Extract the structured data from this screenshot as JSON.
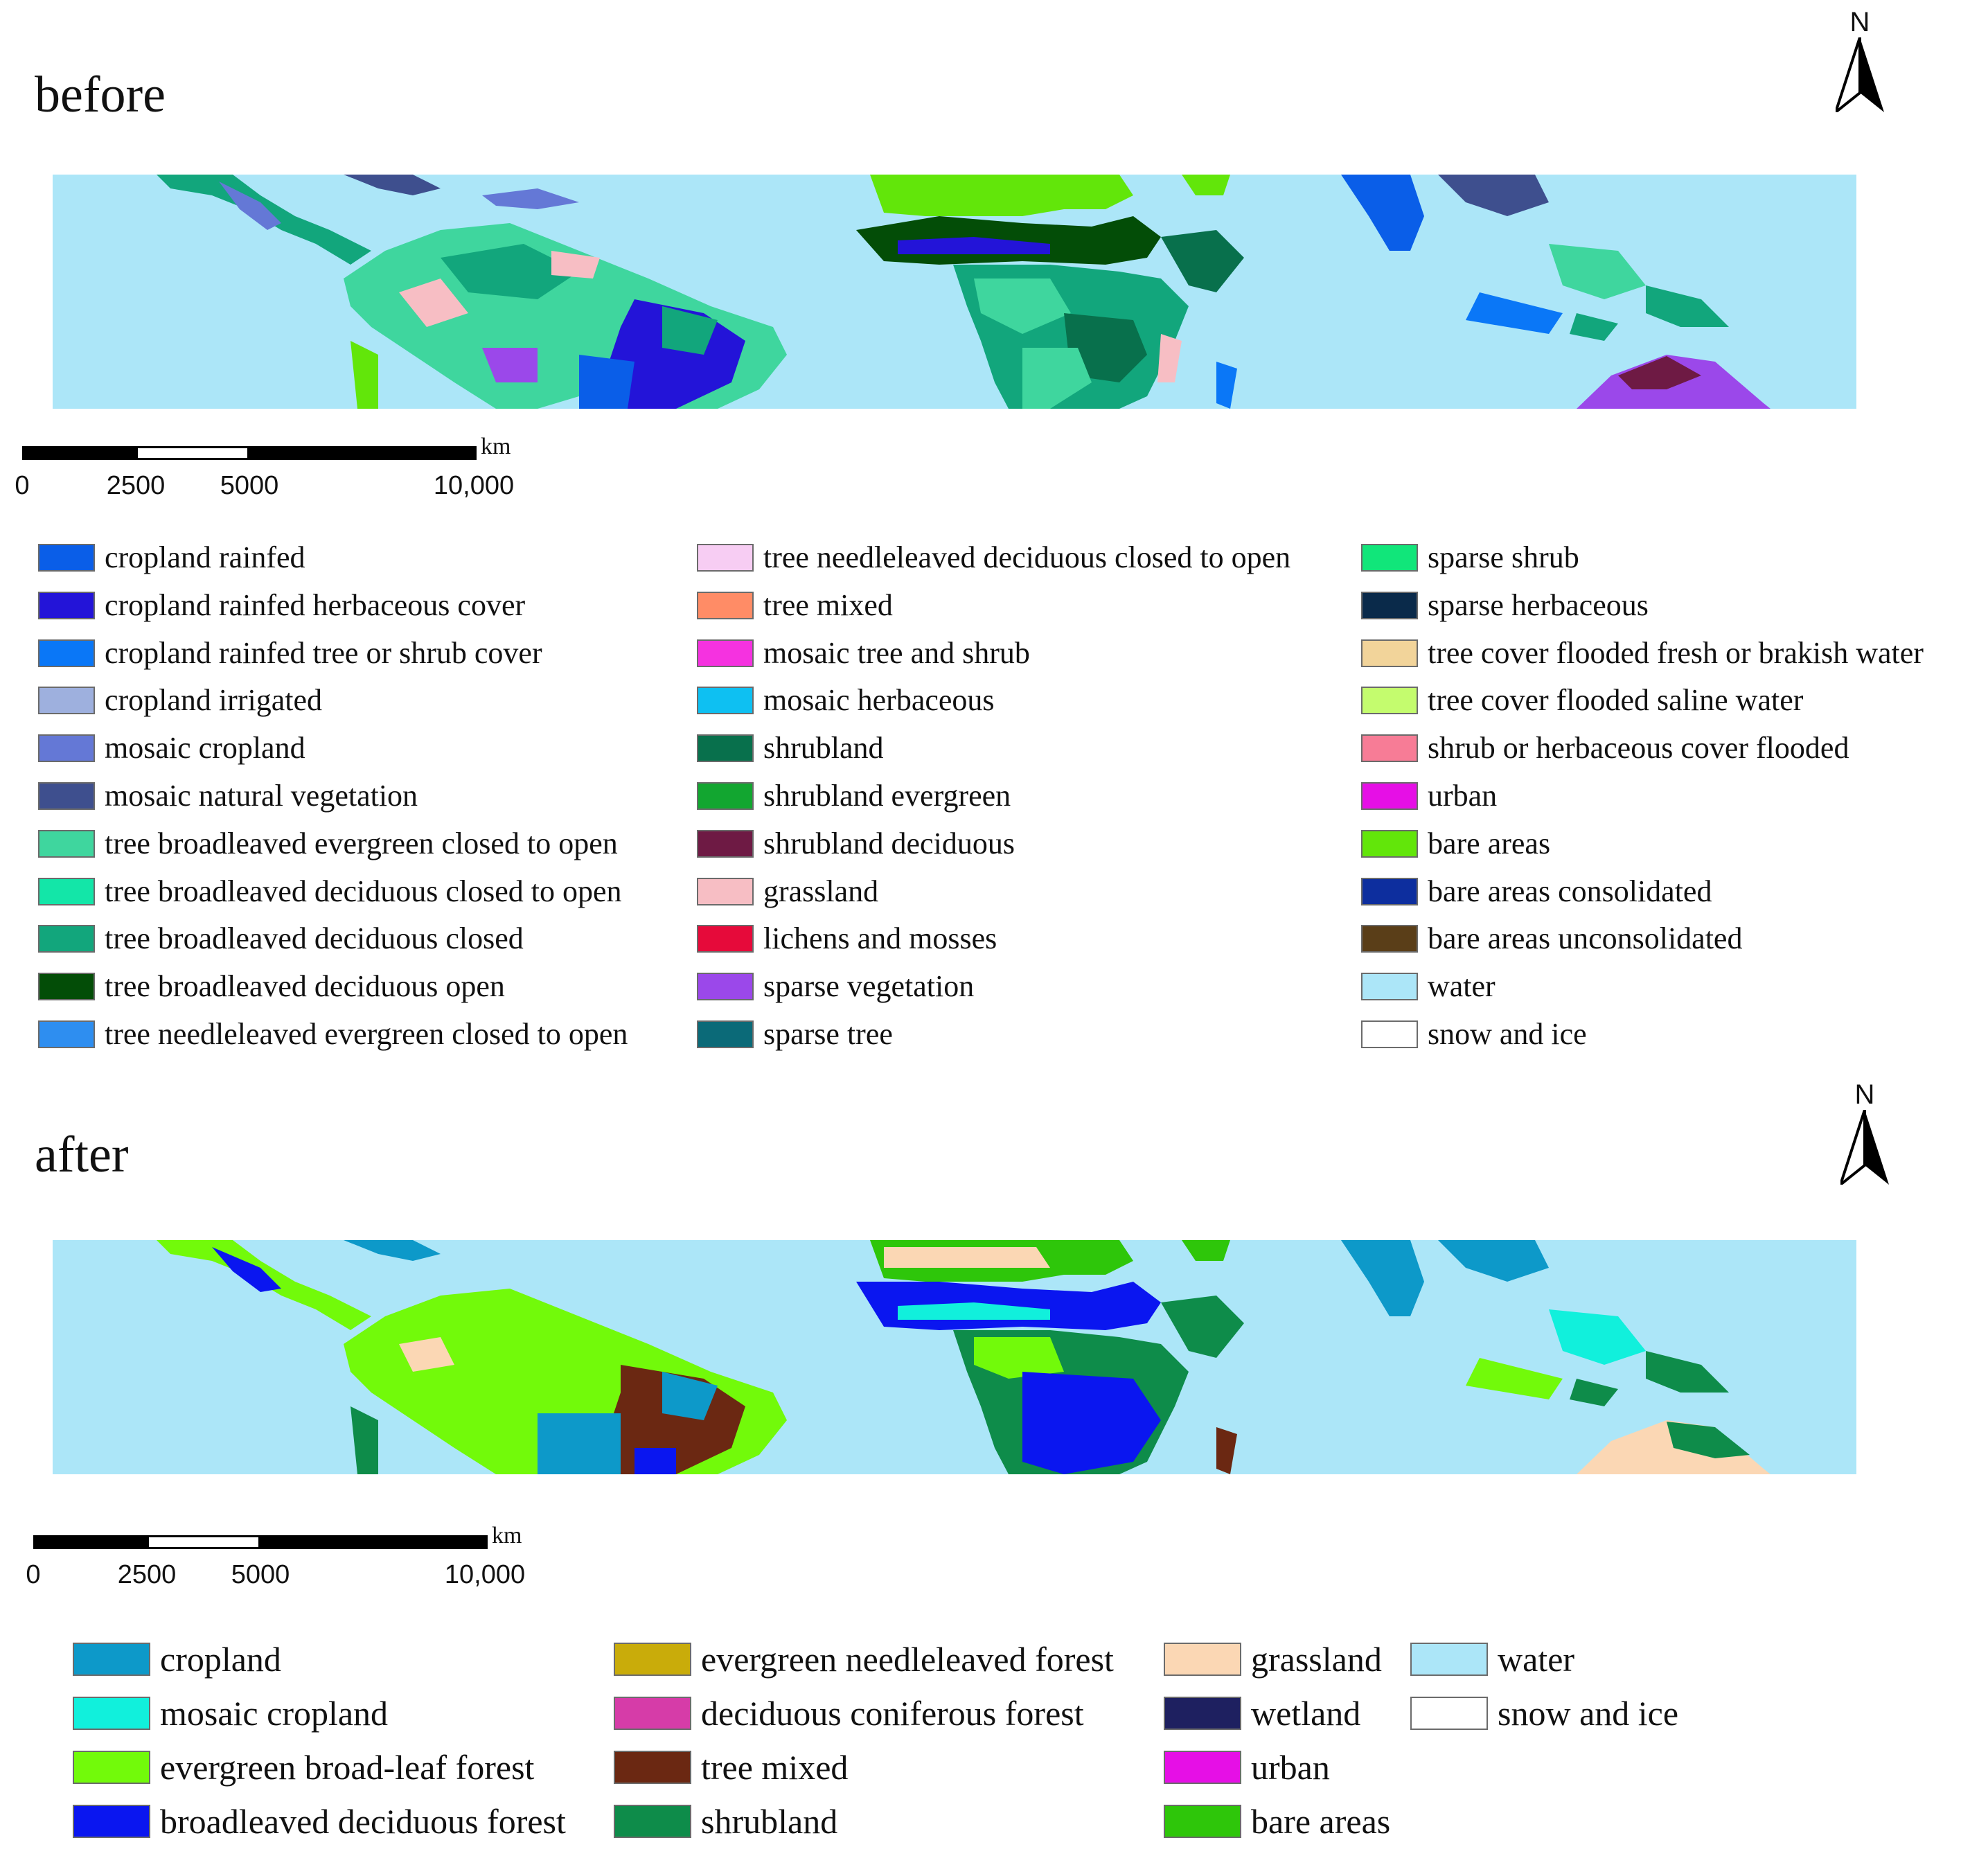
{
  "panels": {
    "before": {
      "title": "before"
    },
    "after": {
      "title": "after"
    }
  },
  "north_arrow": {
    "label": "N"
  },
  "scalebar": {
    "unit": "km",
    "ticks": [
      "0",
      "2500",
      "5000",
      "10,000"
    ]
  },
  "legend_before": [
    {
      "label": " cropland rainfed",
      "color": "#0a5ee8"
    },
    {
      "label": "cropland rainfed herbaceous cover",
      "color": "#2314d8"
    },
    {
      "label": "cropland rainfed tree or shrub cover",
      "color": "#0a77f7"
    },
    {
      "label": "cropland irrigated",
      "color": "#9eb0de"
    },
    {
      "label": " mosaic cropland",
      "color": "#6478d6"
    },
    {
      "label": "mosaic natural vegetation",
      "color": "#3e4f8e"
    },
    {
      "label": "tree broadleaved evergreen closed to open",
      "color": "#3fd69e"
    },
    {
      "label": "tree broadleaved deciduous closed to open",
      "color": "#13e6a8"
    },
    {
      "label": "tree broadleaved deciduous closed",
      "color": "#12a67c"
    },
    {
      "label": "tree broadleaved deciduous open",
      "color": "#034d07"
    },
    {
      "label": "tree needleleaved evergreen closed to open",
      "color": "#2e8ef0"
    },
    {
      "label": "tree needleleaved deciduous closed to open",
      "color": "#f7cdf3"
    },
    {
      "label": "tree mixed",
      "color": "#ff8c66"
    },
    {
      "label": "mosaic tree and shrub",
      "color": "#f532e0"
    },
    {
      "label": "mosaic herbaceous",
      "color": "#0ec0f2"
    },
    {
      "label": "shrubland",
      "color": "#08704c"
    },
    {
      "label": "shrubland evergreen",
      "color": "#12a630"
    },
    {
      "label": "shrubland deciduous",
      "color": "#6e1a44"
    },
    {
      "label": "grassland",
      "color": "#f7bec4"
    },
    {
      "label": "lichens and mosses",
      "color": "#e60a3a"
    },
    {
      "label": "sparse vegetation",
      "color": "#9b48ea"
    },
    {
      "label": "sparse tree",
      "color": "#0b6a78"
    },
    {
      "label": "sparse shrub",
      "color": "#11e67a"
    },
    {
      "label": "sparse herbaceous",
      "color": "#0a2a4a"
    },
    {
      "label": "tree cover flooded fresh or brakish water",
      "color": "#f2d49a"
    },
    {
      "label": "tree cover flooded saline water",
      "color": "#c4fc6e"
    },
    {
      "label": "shrub or herbaceous cover flooded",
      "color": "#f77c96"
    },
    {
      "label": "urban",
      "color": "#e60fe6"
    },
    {
      "label": "bare areas",
      "color": "#62e60a"
    },
    {
      "label": "bare areas consolidated",
      "color": "#0d2e9e"
    },
    {
      "label": "bare areas unconsolidated",
      "color": "#5a3e18"
    },
    {
      "label": "water",
      "color": "#ace6f8"
    },
    {
      "label": "snow and ice",
      "color": "#ffffff"
    }
  ],
  "legend_after": [
    {
      "label": "cropland",
      "color": "#0d99c9"
    },
    {
      "label": "mosaic cropland",
      "color": "#11f0dc"
    },
    {
      "label": "evergreen broad-leaf forest",
      "color": "#72fa0a"
    },
    {
      "label": "broadleaved deciduous forest",
      "color": "#0a16f0"
    },
    {
      "label": "evergreen needleleaved forest",
      "color": "#c9ac0a"
    },
    {
      "label": "deciduous coniferous forest",
      "color": "#d63ca8"
    },
    {
      "label": "tree mixed",
      "color": "#6b2812"
    },
    {
      "label": "shrubland",
      "color": "#0e8c4a"
    },
    {
      "label": "grassland",
      "color": "#fbd7b4"
    },
    {
      "label": "wetland",
      "color": "#1e2060"
    },
    {
      "label": "urban",
      "color": "#e60fe6"
    },
    {
      "label": "bare areas",
      "color": "#2ec60a"
    },
    {
      "label": "water",
      "color": "#ace6f8"
    },
    {
      "label": "snow and ice",
      "color": "#ffffff"
    }
  ]
}
